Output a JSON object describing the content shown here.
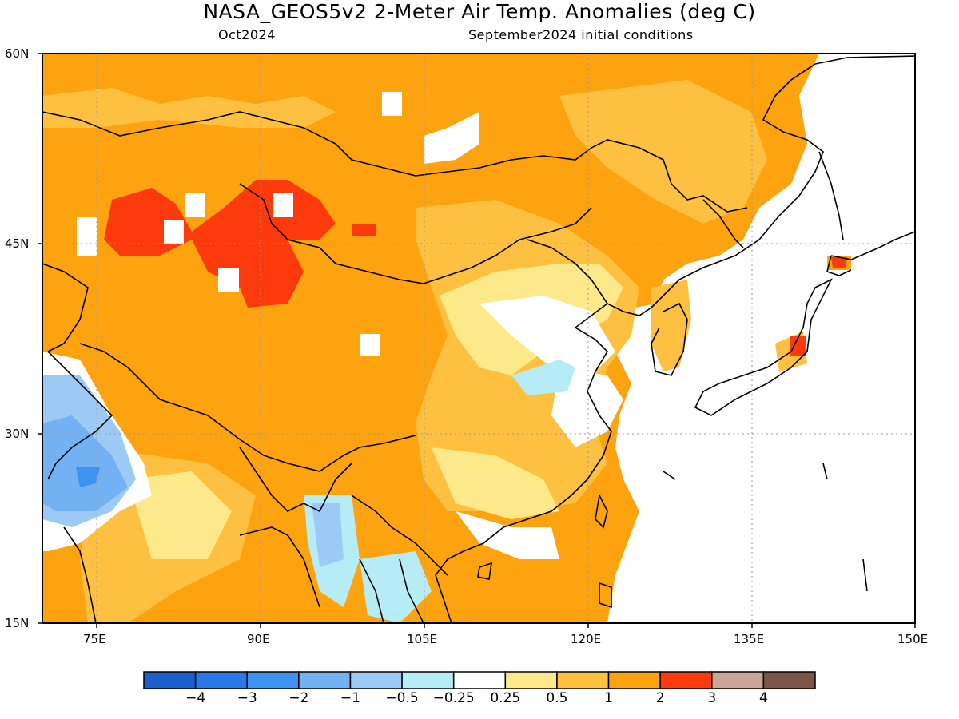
{
  "header": {
    "title": "NASA_GEOS5v2 2-Meter Air Temp. Anomalies (deg C)",
    "valid_month": "Oct2024",
    "init": "September2024 initial conditions"
  },
  "map": {
    "lon_range": [
      70,
      150
    ],
    "lat_range": [
      15,
      60
    ],
    "lat_ticks": [
      "60N",
      "45N",
      "30N",
      "15N"
    ],
    "lon_ticks": [
      "75E",
      "90E",
      "105E",
      "120E",
      "135E",
      "150E"
    ],
    "grid_lines": true
  },
  "colorbar": {
    "colors": [
      "#1a5fcc",
      "#2a78e6",
      "#3f93f0",
      "#72b2f2",
      "#9ccaf5",
      "#b5ecf5",
      "#ffffff",
      "#fde98a",
      "#fdc041",
      "#fca30f",
      "#fd3a0c",
      "#caa494",
      "#7c5546"
    ],
    "labels": [
      "−4",
      "−3",
      "−2",
      "−1",
      "−0.5",
      "−0.25",
      "0.25",
      "0.5",
      "1",
      "2",
      "3",
      "4"
    ]
  }
}
